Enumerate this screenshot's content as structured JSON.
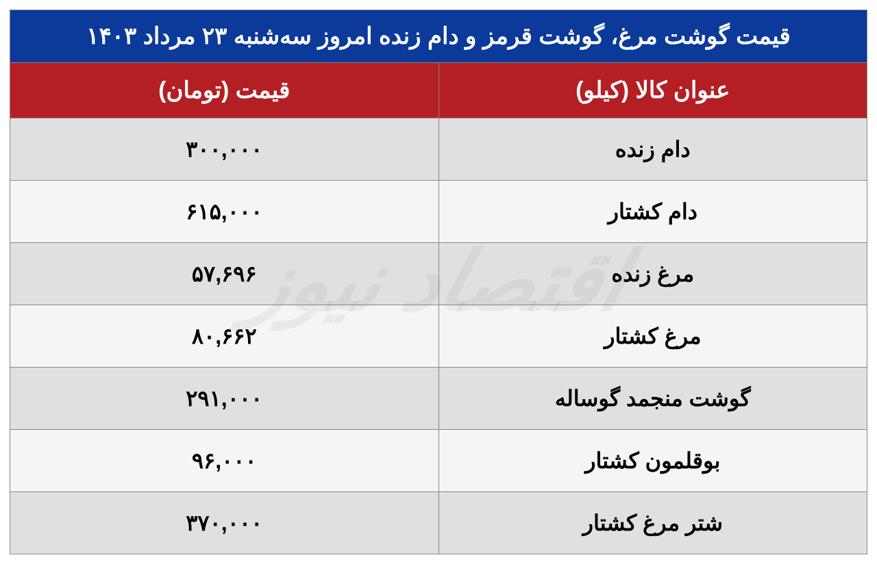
{
  "table": {
    "title": "قیمت گوشت مرغ، گوشت قرمز و دام زنده امروز سه‌شنبه ۲۳ مرداد ۱۴۰۳",
    "title_bg_color": "#0b3a9a",
    "title_text_color": "#ffffff",
    "title_fontsize": 34,
    "header_bg_color": "#b41f24",
    "header_text_color": "#ffffff",
    "header_fontsize": 34,
    "columns": {
      "item": "عنوان کالا (کیلو)",
      "price": "قیمت (تومان)"
    },
    "row_odd_bg": "#e0e0e0",
    "row_even_bg": "#f5f5f5",
    "row_text_color": "#000000",
    "row_fontsize": 32,
    "border_color": "#888888",
    "rows": [
      {
        "item": "دام زنده",
        "price": "۳۰۰,۰۰۰"
      },
      {
        "item": "دام کشتار",
        "price": "۶۱۵,۰۰۰"
      },
      {
        "item": "مرغ زنده",
        "price": "۵۷,۶۹۶"
      },
      {
        "item": "مرغ کشتار",
        "price": "۸۰,۶۶۲"
      },
      {
        "item": "گوشت منجمد گوساله",
        "price": "۲۹۱,۰۰۰"
      },
      {
        "item": "بوقلمون کشتار",
        "price": "۹۶,۰۰۰"
      },
      {
        "item": "شتر مرغ کشتار",
        "price": "۳۷۰,۰۰۰"
      }
    ]
  },
  "watermark": {
    "text": "اقتصاد نیوز",
    "color": "rgba(100,100,100,0.08)",
    "fontsize": 120
  }
}
